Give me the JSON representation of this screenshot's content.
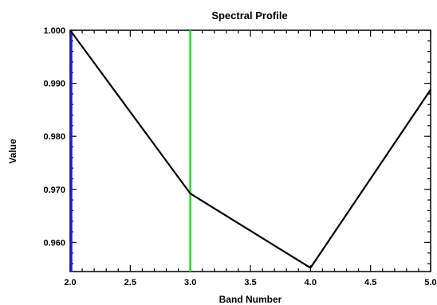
{
  "chart_data": {
    "type": "line",
    "title": "Spectral Profile",
    "xlabel": "Band Number",
    "ylabel": "Value",
    "xlim": [
      2.0,
      5.0
    ],
    "ylim": [
      0.9545,
      1.0
    ],
    "x_ticks": [
      "2.0",
      "2.5",
      "3.0",
      "3.5",
      "4.0",
      "4.5",
      "5.0"
    ],
    "x_tick_values": [
      2.0,
      2.5,
      3.0,
      3.5,
      4.0,
      4.5,
      5.0
    ],
    "y_ticks": [
      "0.960",
      "0.970",
      "0.980",
      "0.990",
      "1.000"
    ],
    "y_tick_values": [
      0.96,
      0.97,
      0.98,
      0.99,
      1.0
    ],
    "grid": false,
    "series": [
      {
        "color": "#000000",
        "x": [
          2.0,
          3.0,
          4.0,
          5.0
        ],
        "values": [
          1.0,
          0.9692,
          0.9552,
          0.9888
        ]
      }
    ],
    "markers": [
      {
        "x": 2.0,
        "color": "#1a1aff"
      },
      {
        "x": 3.0,
        "color": "#22dd22"
      }
    ]
  }
}
